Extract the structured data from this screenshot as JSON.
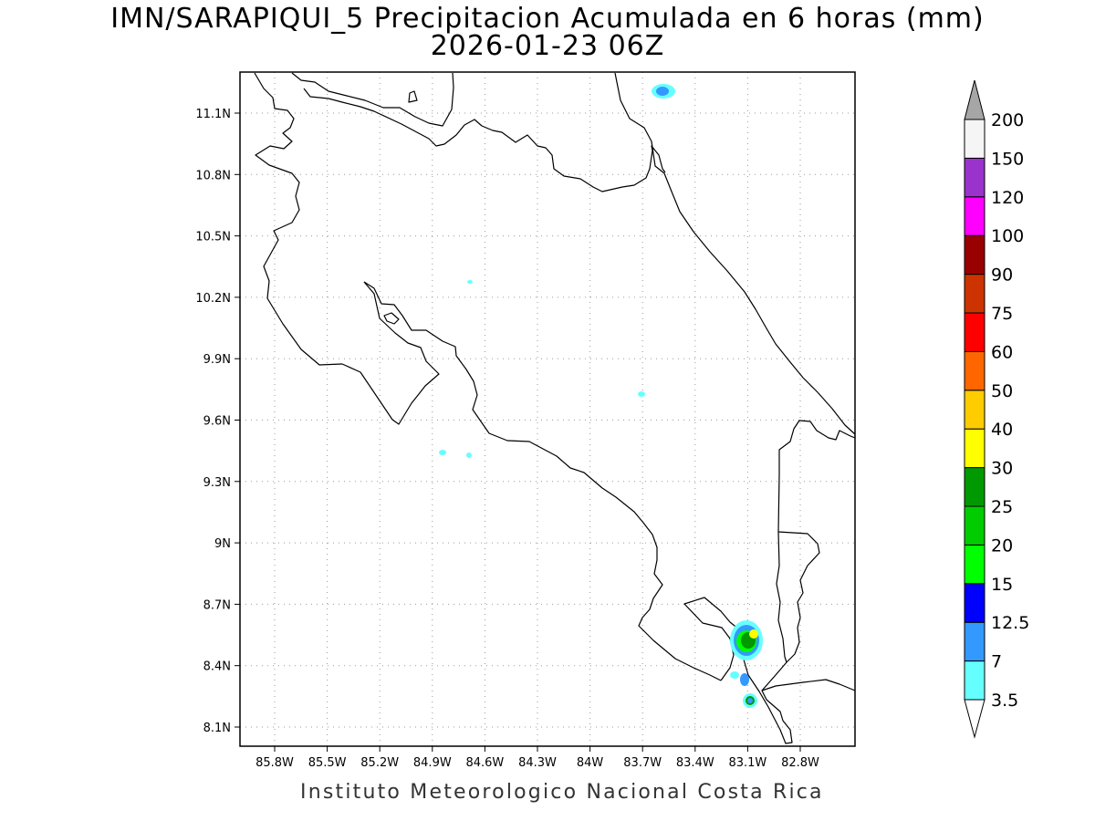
{
  "header": {
    "title": "IMN/SARAPIQUI_5 Precipitacion Acumulada en 6 horas (mm)",
    "subtitle": "2026-01-23 06Z"
  },
  "footer": {
    "credit": "Instituto Meteorologico Nacional Costa Rica"
  },
  "map": {
    "lon_labels": [
      "85.8W",
      "85.5W",
      "85.2W",
      "84.9W",
      "84.6W",
      "84.3W",
      "84W",
      "83.7W",
      "83.4W",
      "83.1W",
      "82.8W"
    ],
    "lat_labels": [
      "11.1N",
      "10.8N",
      "10.5N",
      "10.2N",
      "9.9N",
      "9.6N",
      "9.3N",
      "9N",
      "8.7N",
      "8.4N",
      "8.1N"
    ],
    "grid": true
  },
  "colorbar": {
    "labels": [
      "3.5",
      "7",
      "12.5",
      "15",
      "20",
      "25",
      "30",
      "40",
      "50",
      "60",
      "75",
      "90",
      "100",
      "120",
      "150",
      "200"
    ],
    "colors": [
      "#66ffff",
      "#3399ff",
      "#0000ff",
      "#00ff00",
      "#00cc00",
      "#009900",
      "#ffff00",
      "#ffcc00",
      "#ff6600",
      "#ff0000",
      "#cc3300",
      "#990000",
      "#ff00ff",
      "#9933cc",
      "#f5f5f5",
      "#a6a6a6"
    ]
  }
}
